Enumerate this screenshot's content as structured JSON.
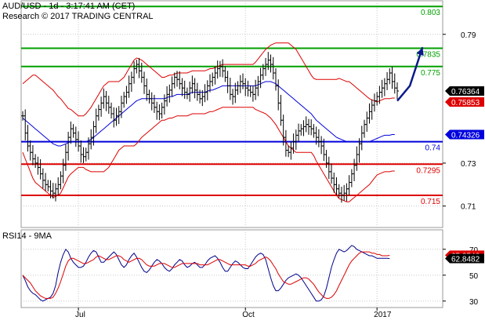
{
  "header": {
    "line1": "AUD/USD - 1d - 3:17:41 AM (CET)",
    "line2": "Research © 2017 TRADING CENTRAL"
  },
  "chart_data": [
    {
      "type": "candlestick",
      "ylim": [
        0.7,
        0.806
      ],
      "yticks": [
        {
          "value": 0.79,
          "label": "0.79"
        },
        {
          "value": 0.73,
          "label": "0.73"
        },
        {
          "value": 0.71,
          "label": "0.71"
        }
      ],
      "xticks": [
        {
          "index": 22,
          "label": "Jul"
        },
        {
          "index": 88,
          "label": "Oct"
        },
        {
          "index": 140,
          "label": "2017"
        }
      ],
      "levels": [
        {
          "value": 0.803,
          "label": "0.803",
          "color": "#00a000"
        },
        {
          "value": 0.7835,
          "label": "0.7835",
          "color": "#00a000"
        },
        {
          "value": 0.775,
          "label": "0.775",
          "color": "#00a000"
        },
        {
          "value": 0.74,
          "label": "0.74",
          "color": "#0000dd"
        },
        {
          "value": 0.7295,
          "label": "0.7295",
          "color": "#dd0000"
        },
        {
          "value": 0.715,
          "label": "0.715",
          "color": "#dd0000"
        }
      ],
      "badges": [
        {
          "value": 0.7636,
          "label": "0.76364",
          "color": "#000000"
        },
        {
          "value": 0.7585,
          "label": "0.75853",
          "color": "#dd0000"
        },
        {
          "value": 0.7433,
          "label": "0.74326",
          "color": "#0000dd"
        }
      ],
      "close": [
        0.752,
        0.744,
        0.738,
        0.735,
        0.732,
        0.73,
        0.728,
        0.725,
        0.722,
        0.72,
        0.719,
        0.717,
        0.716,
        0.718,
        0.72,
        0.724,
        0.729,
        0.735,
        0.742,
        0.746,
        0.744,
        0.741,
        0.738,
        0.734,
        0.733,
        0.735,
        0.739,
        0.742,
        0.747,
        0.752,
        0.755,
        0.758,
        0.761,
        0.758,
        0.756,
        0.753,
        0.75,
        0.752,
        0.754,
        0.758,
        0.761,
        0.763,
        0.767,
        0.77,
        0.774,
        0.776,
        0.773,
        0.77,
        0.766,
        0.762,
        0.76,
        0.758,
        0.756,
        0.754,
        0.753,
        0.756,
        0.759,
        0.762,
        0.764,
        0.767,
        0.77,
        0.769,
        0.767,
        0.765,
        0.763,
        0.762,
        0.765,
        0.767,
        0.764,
        0.762,
        0.76,
        0.761,
        0.763,
        0.766,
        0.768,
        0.77,
        0.772,
        0.774,
        0.775,
        0.773,
        0.77,
        0.766,
        0.762,
        0.761,
        0.764,
        0.766,
        0.768,
        0.767,
        0.765,
        0.764,
        0.763,
        0.762,
        0.765,
        0.768,
        0.771,
        0.774,
        0.776,
        0.778,
        0.776,
        0.772,
        0.766,
        0.758,
        0.75,
        0.742,
        0.736,
        0.735,
        0.737,
        0.74,
        0.743,
        0.745,
        0.746,
        0.747,
        0.748,
        0.747,
        0.746,
        0.744,
        0.742,
        0.74,
        0.738,
        0.734,
        0.73,
        0.726,
        0.723,
        0.72,
        0.718,
        0.716,
        0.715,
        0.716,
        0.718,
        0.721,
        0.725,
        0.729,
        0.734,
        0.739,
        0.744,
        0.748,
        0.751,
        0.754,
        0.757,
        0.759,
        0.761,
        0.763,
        0.765,
        0.767,
        0.769,
        0.772,
        0.768,
        0.765,
        0.7636
      ],
      "overlays": {
        "sma": [
          0.751,
          0.75,
          0.749,
          0.748,
          0.747,
          0.746,
          0.745,
          0.744,
          0.743,
          0.742,
          0.741,
          0.74,
          0.739,
          0.7385,
          0.738,
          0.738,
          0.7385,
          0.739,
          0.7395,
          0.74,
          0.74,
          0.74,
          0.74,
          0.74,
          0.74,
          0.74,
          0.7405,
          0.741,
          0.742,
          0.743,
          0.744,
          0.745,
          0.746,
          0.747,
          0.748,
          0.749,
          0.75,
          0.751,
          0.752,
          0.753,
          0.754,
          0.755,
          0.756,
          0.757,
          0.758,
          0.759,
          0.7595,
          0.76,
          0.76,
          0.76,
          0.76,
          0.76,
          0.76,
          0.76,
          0.76,
          0.76,
          0.76,
          0.7605,
          0.761,
          0.761,
          0.7615,
          0.762,
          0.762,
          0.762,
          0.762,
          0.762,
          0.7625,
          0.763,
          0.763,
          0.763,
          0.763,
          0.763,
          0.763,
          0.7635,
          0.764,
          0.764,
          0.7645,
          0.765,
          0.7655,
          0.766,
          0.766,
          0.766,
          0.766,
          0.766,
          0.766,
          0.766,
          0.766,
          0.766,
          0.766,
          0.766,
          0.766,
          0.766,
          0.766,
          0.7665,
          0.767,
          0.7675,
          0.768,
          0.768,
          0.768,
          0.7675,
          0.767,
          0.766,
          0.765,
          0.764,
          0.763,
          0.762,
          0.761,
          0.76,
          0.759,
          0.758,
          0.757,
          0.756,
          0.755,
          0.754,
          0.753,
          0.7515,
          0.75,
          0.749,
          0.748,
          0.747,
          0.746,
          0.745,
          0.744,
          0.743,
          0.742,
          0.7415,
          0.741,
          0.7405,
          0.74,
          0.74,
          0.74,
          0.74,
          0.74,
          0.74,
          0.74,
          0.74,
          0.74,
          0.74,
          0.7405,
          0.741,
          0.7415,
          0.742,
          0.7425,
          0.743,
          0.743,
          0.743,
          0.7433,
          0.7433
        ],
        "band_width": [
          0.016,
          0.018,
          0.02,
          0.022,
          0.024,
          0.025,
          0.025,
          0.025,
          0.025,
          0.025,
          0.025,
          0.025,
          0.025,
          0.024,
          0.023,
          0.022,
          0.02,
          0.018,
          0.016,
          0.015,
          0.014,
          0.013,
          0.012,
          0.012,
          0.012,
          0.013,
          0.014,
          0.015,
          0.016,
          0.017,
          0.018,
          0.019,
          0.02,
          0.02,
          0.02,
          0.019,
          0.018,
          0.017,
          0.016,
          0.016,
          0.016,
          0.017,
          0.018,
          0.019,
          0.02,
          0.02,
          0.019,
          0.018,
          0.017,
          0.016,
          0.015,
          0.014,
          0.013,
          0.012,
          0.011,
          0.01,
          0.01,
          0.01,
          0.01,
          0.01,
          0.01,
          0.01,
          0.01,
          0.01,
          0.01,
          0.01,
          0.01,
          0.01,
          0.01,
          0.01,
          0.01,
          0.01,
          0.01,
          0.01,
          0.01,
          0.01,
          0.01,
          0.01,
          0.01,
          0.01,
          0.01,
          0.01,
          0.01,
          0.01,
          0.01,
          0.01,
          0.01,
          0.01,
          0.01,
          0.01,
          0.01,
          0.01,
          0.011,
          0.012,
          0.013,
          0.014,
          0.015,
          0.016,
          0.017,
          0.018,
          0.019,
          0.02,
          0.021,
          0.022,
          0.023,
          0.024,
          0.024,
          0.024,
          0.024,
          0.023,
          0.022,
          0.021,
          0.02,
          0.019,
          0.018,
          0.018,
          0.019,
          0.02,
          0.021,
          0.022,
          0.023,
          0.024,
          0.025,
          0.026,
          0.027,
          0.028,
          0.028,
          0.028,
          0.028,
          0.028,
          0.027,
          0.026,
          0.025,
          0.024,
          0.023,
          0.022,
          0.021,
          0.02,
          0.019,
          0.018,
          0.017,
          0.017,
          0.017,
          0.017,
          0.017,
          0.017,
          0.017,
          0.017,
          0.017
        ]
      },
      "projection": [
        [
          148,
          0.759
        ],
        [
          153,
          0.766
        ],
        [
          158,
          0.784
        ]
      ]
    },
    {
      "type": "line",
      "title": "RSI14 - 9MA",
      "ylim": [
        25,
        85
      ],
      "yticks": [
        {
          "value": 70,
          "label": "70"
        },
        {
          "value": 50,
          "label": "50"
        },
        {
          "value": 30,
          "label": "30"
        }
      ],
      "badges": [
        {
          "value": 65.35,
          "label": "65.3546",
          "color": "#dd0000"
        },
        {
          "value": 62.85,
          "label": "62.8482",
          "color": "#000000"
        }
      ],
      "series": [
        {
          "color": "#00008b",
          "values": [
            50,
            46,
            41,
            38,
            36,
            35,
            33,
            31,
            30,
            31,
            32,
            33,
            36,
            42,
            52,
            60,
            66,
            70,
            68,
            63,
            60,
            58,
            56,
            56,
            57,
            60,
            64,
            67,
            69,
            68,
            64,
            60,
            60,
            62,
            64,
            66,
            68,
            66,
            62,
            58,
            56,
            58,
            62,
            65,
            67,
            64,
            60,
            56,
            53,
            52,
            54,
            57,
            60,
            62,
            61,
            59,
            56,
            54,
            53,
            55,
            58,
            60,
            62,
            61,
            58,
            56,
            57,
            59,
            60,
            58,
            56,
            56,
            58,
            61,
            63,
            64,
            65,
            63,
            60,
            56,
            53,
            53,
            56,
            59,
            61,
            60,
            58,
            56,
            55,
            55,
            58,
            61,
            64,
            66,
            67,
            66,
            62,
            55,
            48,
            42,
            38,
            38,
            40,
            43,
            46,
            48,
            49,
            50,
            51,
            50,
            48,
            45,
            42,
            39,
            36,
            33,
            30,
            30,
            31,
            34,
            40,
            48,
            56,
            62,
            67,
            70,
            69,
            68,
            69,
            71,
            73,
            72,
            70,
            69,
            68,
            67,
            66,
            65,
            65,
            64,
            63,
            63,
            63,
            63,
            63,
            62.8
          ]
        },
        {
          "color": "#dd0000",
          "values": [
            50,
            48,
            46,
            44,
            41,
            38,
            36,
            34,
            33,
            32,
            32,
            32,
            33,
            36,
            40,
            45,
            51,
            57,
            61,
            63,
            63,
            62,
            61,
            60,
            59,
            59,
            60,
            61,
            62,
            64,
            65,
            64,
            63,
            62,
            62,
            63,
            64,
            65,
            65,
            64,
            62,
            61,
            60,
            61,
            62,
            63,
            63,
            62,
            60,
            58,
            57,
            57,
            57,
            58,
            59,
            59,
            59,
            58,
            57,
            56,
            56,
            57,
            58,
            59,
            59,
            59,
            59,
            59,
            59,
            59,
            58,
            58,
            58,
            58,
            59,
            60,
            61,
            62,
            62,
            61,
            60,
            59,
            58,
            58,
            58,
            58,
            58,
            58,
            58,
            57,
            57,
            58,
            59,
            61,
            62,
            63,
            64,
            63,
            61,
            58,
            55,
            51,
            48,
            45,
            44,
            43,
            43,
            44,
            45,
            46,
            47,
            48,
            48,
            47,
            45,
            43,
            40,
            37,
            35,
            33,
            32,
            32,
            33,
            35,
            38,
            42,
            46,
            50,
            54,
            58,
            61,
            63,
            65,
            67,
            68,
            68,
            68,
            68,
            67,
            67,
            66,
            66,
            65,
            65,
            65,
            65.3
          ]
        }
      ]
    }
  ]
}
